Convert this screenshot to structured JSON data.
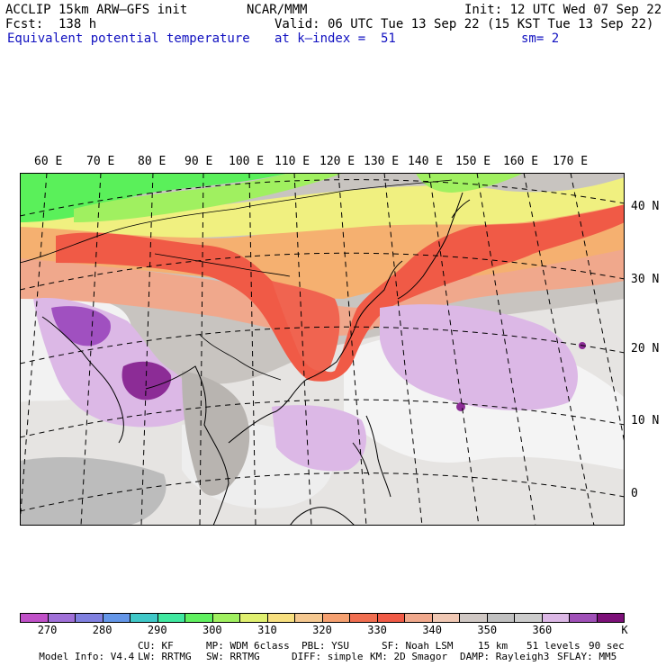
{
  "header": {
    "model": "ACCLIP 15km ARW–GFS init",
    "forecast": "Fcst:  138 h",
    "variable": "Equivalent potential temperature",
    "center": "NCAR/MMM",
    "valid": "Valid: 06 UTC Tue 13 Sep 22 (15 KST Tue 13 Sep 22)",
    "level": "at k–index =  51",
    "init": "Init: 12 UTC Wed 07 Sep 22",
    "smoothing": "sm= 2"
  },
  "map": {
    "lon_labels": [
      "60 E",
      "70 E",
      "80 E",
      "90 E",
      "100 E",
      "110 E",
      "120 E",
      "130 E",
      "140 E",
      "150 E",
      "160 E",
      "170 E"
    ],
    "lat_labels": [
      "40 N",
      "30 N",
      "20 N",
      "10 N",
      "0"
    ],
    "colors": {
      "green": "#5af05a",
      "lightgreen": "#a0f060",
      "yellow": "#f0f080",
      "orange": "#f5b070",
      "red": "#f05a46",
      "salmon": "#f0a88c",
      "lightsalmon": "#eccab6",
      "grey": "#c8c4c0",
      "lightgrey": "#e6e4e2",
      "white": "#f6f6f6",
      "lilac": "#dcb8e6",
      "violet": "#a050c0",
      "purple": "#8c2c96"
    }
  },
  "colorbar": {
    "colors": [
      "#c050c8",
      "#a070d8",
      "#8080e0",
      "#6496e8",
      "#40c8c8",
      "#40e8a0",
      "#60f060",
      "#a0f060",
      "#e0f070",
      "#f8e080",
      "#f5c890",
      "#f5a070",
      "#f06e50",
      "#f05a46",
      "#f0a88c",
      "#f0c8b4",
      "#d0c8c4",
      "#c0c0c0",
      "#cccccc",
      "#dcb8e6",
      "#a050b8",
      "#7c1078"
    ],
    "labels": [
      "270",
      "280",
      "290",
      "300",
      "310",
      "320",
      "330",
      "340",
      "350",
      "360",
      "K"
    ]
  },
  "footer": {
    "line1": [
      "Model Info: V4.4",
      "CU: KF",
      "MP: WDM 6class",
      "PBL: YSU",
      "SF: Noah LSM",
      "15 km",
      "51 levels",
      "90 sec"
    ],
    "line2": [
      "LW: RRTMG",
      "SW: RRTMG",
      "DIFF: simple",
      "KM: 2D Smagor",
      "DAMP: Rayleigh3",
      "SFLAY: MM5"
    ]
  }
}
